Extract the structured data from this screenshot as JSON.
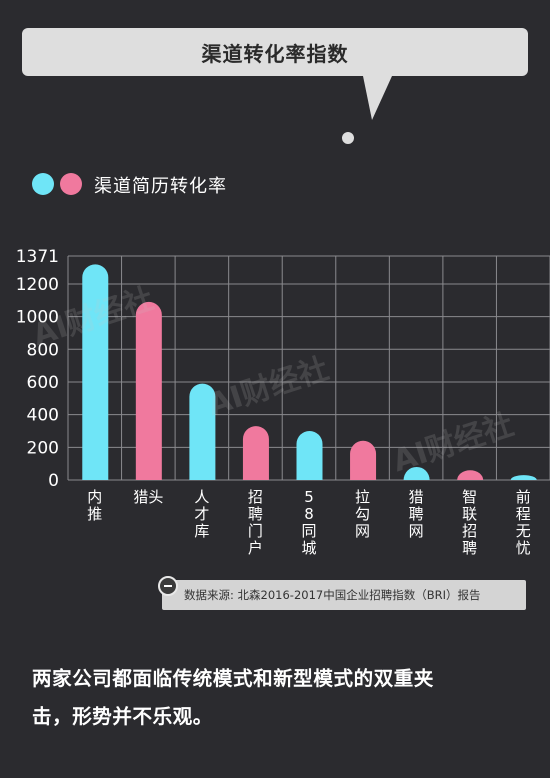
{
  "header": {
    "title": "渠道转化率指数"
  },
  "legend": {
    "label": "渠道简历转化率",
    "colors": [
      "#6fe5f7",
      "#f0799e"
    ]
  },
  "chart_data": {
    "type": "bar",
    "title": "渠道转化率指数",
    "series_name": "渠道简历转化率",
    "categories": [
      "内推",
      "猎头",
      "人才库",
      "招聘门户",
      "58同城",
      "拉勾网",
      "猎聘网",
      "智联招聘",
      "前程无忧"
    ],
    "category_labels": [
      "内\n推",
      "猎头",
      "人\n才\n库",
      "招\n聘\n门\n户",
      "5\n8\n同\n城",
      "拉\n勾\n网",
      "猎\n聘\n网",
      "智\n联\n招\n聘",
      "前\n程\n无\n忧"
    ],
    "values": [
      1320,
      1090,
      590,
      330,
      300,
      240,
      80,
      60,
      30
    ],
    "bar_colors": [
      "#6fe5f7",
      "#f0799e",
      "#6fe5f7",
      "#f0799e",
      "#6fe5f7",
      "#f0799e",
      "#6fe5f7",
      "#f0799e",
      "#6fe5f7"
    ],
    "yticks": [
      0,
      200,
      400,
      600,
      800,
      1000,
      1200,
      1371
    ],
    "ylim": [
      0,
      1371
    ],
    "grid": true,
    "legend_position": "top-left"
  },
  "source": {
    "text": "数据来源: 北森2016-2017中国企业招聘指数（BRI）报告"
  },
  "watermark": {
    "text": "AI财经社"
  },
  "footer": {
    "line1": "两家公司都面临传统模式和新型模式的双重夹",
    "line2": "击，形势并不乐观。"
  }
}
